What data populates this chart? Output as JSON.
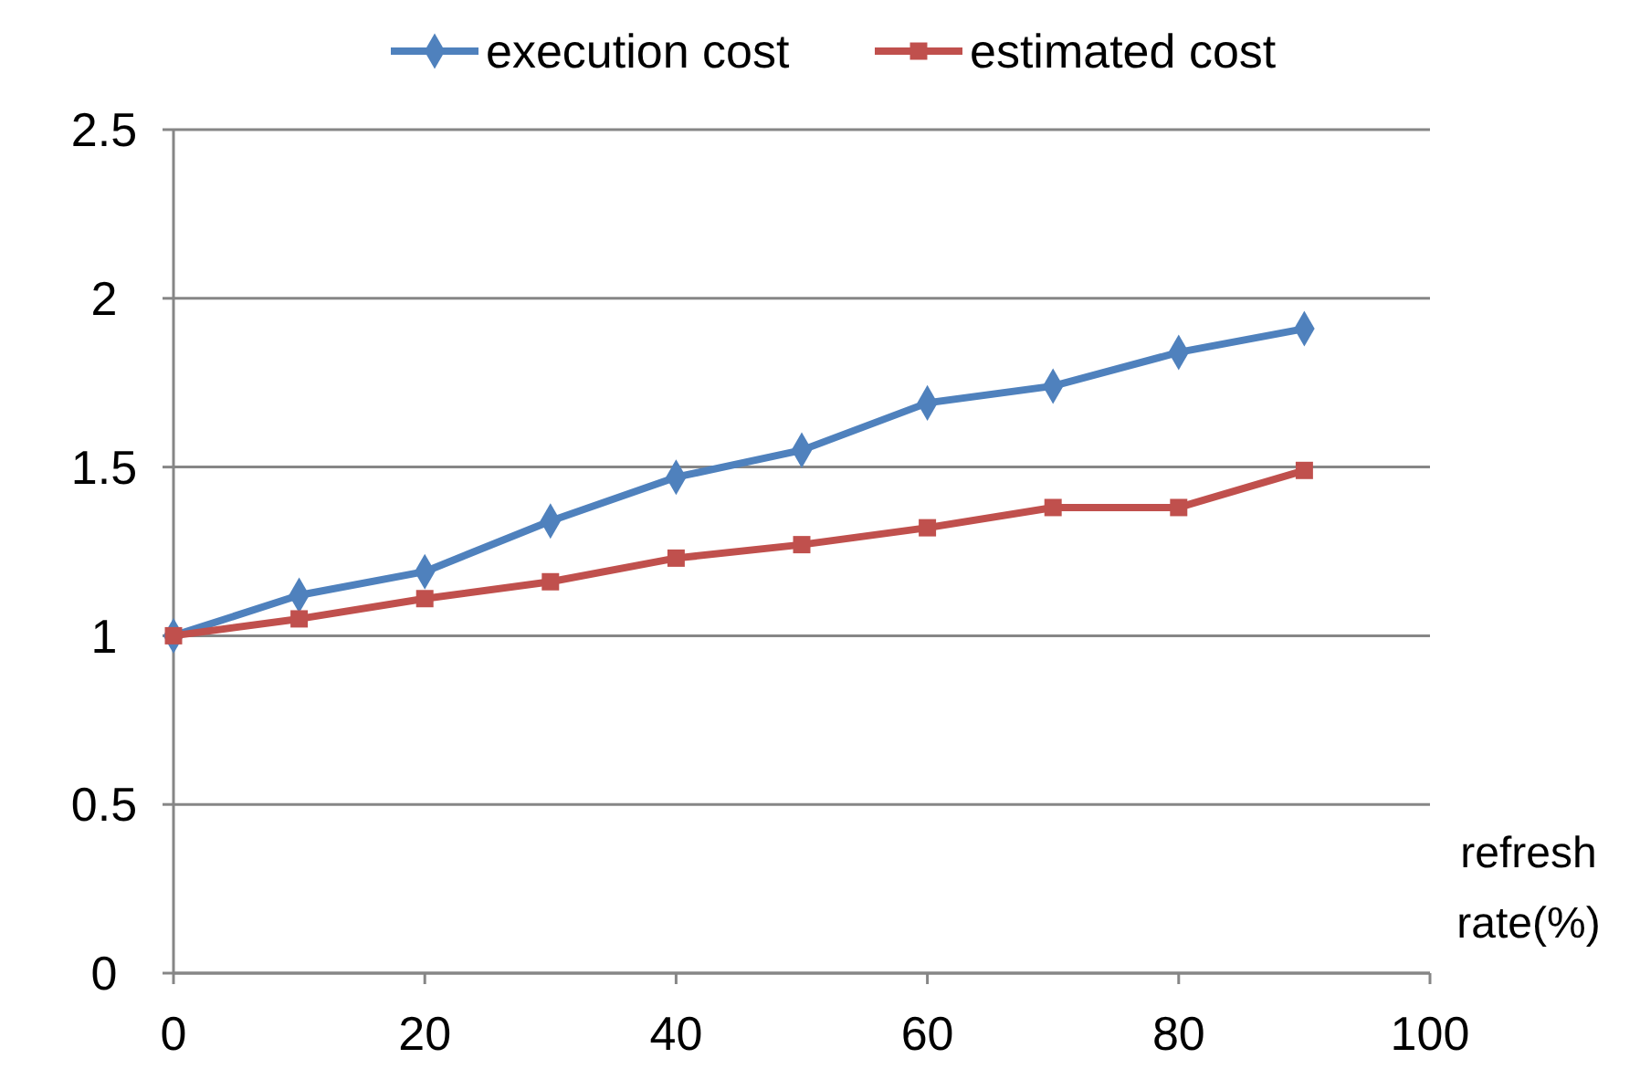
{
  "chart_data": {
    "type": "line",
    "xlabel": "refresh rate(%)",
    "x": [
      0,
      10,
      20,
      30,
      40,
      50,
      60,
      70,
      80,
      90
    ],
    "series": [
      {
        "name": "execution cost",
        "color": "#4f81bd",
        "marker": "diamond",
        "values": [
          1.0,
          1.12,
          1.19,
          1.34,
          1.47,
          1.55,
          1.69,
          1.74,
          1.84,
          1.91
        ]
      },
      {
        "name": "estimated cost",
        "color": "#c0504d",
        "marker": "square",
        "values": [
          1.0,
          1.05,
          1.11,
          1.16,
          1.23,
          1.27,
          1.32,
          1.38,
          1.38,
          1.49
        ]
      }
    ],
    "xlim": [
      0,
      100
    ],
    "xticks": [
      0,
      20,
      40,
      60,
      80,
      100
    ],
    "ylim": [
      0,
      2.5
    ],
    "yticks": [
      0,
      0.5,
      1,
      1.5,
      2,
      2.5
    ],
    "grid": "y",
    "legend": "top",
    "line_style": "solid"
  }
}
